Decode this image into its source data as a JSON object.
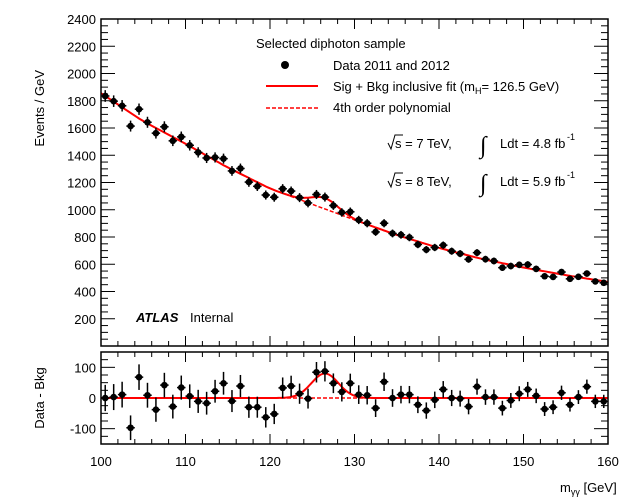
{
  "chart_data": [
    {
      "type": "scatter",
      "panel": "main",
      "ylabel": "Events / GeV",
      "xlim": [
        100,
        160
      ],
      "ylim": [
        0,
        2400
      ],
      "yticks": [
        200,
        400,
        600,
        800,
        1000,
        1200,
        1400,
        1600,
        1800,
        2000,
        2200,
        2400
      ],
      "legend": {
        "title": "Selected diphoton sample",
        "entries": [
          "Data 2011 and 2012",
          "Sig + Bkg inclusive fit (m",
          "= 126.5 GeV)",
          "4th order polynomial"
        ],
        "mh_sub": "H"
      },
      "annotations": {
        "lumi_7": {
          "sqrt_s": "s = 7 TeV,",
          "int": "Ldt = 4.8 fb",
          "exp": "-1"
        },
        "lumi_8": {
          "sqrt_s": "s = 8 TeV,",
          "int": "Ldt = 5.9 fb",
          "exp": "-1"
        },
        "atlas": "ATLAS",
        "internal": "Internal"
      },
      "colors": {
        "data": "#000000",
        "fit": "#ff0000",
        "bkg": "#ff0000"
      },
      "x": [
        100.5,
        101.5,
        102.5,
        103.5,
        104.5,
        105.5,
        106.5,
        107.5,
        108.5,
        109.5,
        110.5,
        111.5,
        112.5,
        113.5,
        114.5,
        115.5,
        116.5,
        117.5,
        118.5,
        119.5,
        120.5,
        121.5,
        122.5,
        123.5,
        124.5,
        125.5,
        126.5,
        127.5,
        128.5,
        129.5,
        130.5,
        131.5,
        132.5,
        133.5,
        134.5,
        135.5,
        136.5,
        137.5,
        138.5,
        139.5,
        140.5,
        141.5,
        142.5,
        143.5,
        144.5,
        145.5,
        146.5,
        147.5,
        148.5,
        149.5,
        150.5,
        151.5,
        152.5,
        153.5,
        154.5,
        155.5,
        156.5,
        157.5,
        158.5,
        159.5
      ],
      "data": [
        1835,
        1797,
        1763,
        1614,
        1738,
        1642,
        1562,
        1609,
        1506,
        1535,
        1473,
        1421,
        1380,
        1384,
        1375,
        1285,
        1303,
        1203,
        1172,
        1108,
        1092,
        1154,
        1137,
        1089,
        1050,
        1112,
        1093,
        1031,
        980,
        985,
        925,
        901,
        837,
        901,
        826,
        816,
        797,
        745,
        707,
        723,
        740,
        696,
        678,
        636,
        685,
        637,
        624,
        575,
        587,
        596,
        598,
        566,
        512,
        507,
        543,
        493,
        508,
        532,
        474,
        464
      ],
      "background": [
        1835,
        1794,
        1752,
        1711,
        1670,
        1633,
        1600,
        1567,
        1534,
        1501,
        1467,
        1432,
        1397,
        1362,
        1327,
        1295,
        1264,
        1233,
        1202,
        1171,
        1144,
        1121,
        1098,
        1075,
        1052,
        1028,
        1006,
        983,
        960,
        937,
        914,
        892,
        870,
        848,
        826,
        805,
        786,
        767,
        748,
        729,
        712,
        696,
        680,
        664,
        648,
        634,
        621,
        608,
        595,
        582,
        570,
        559,
        548,
        537,
        526,
        515,
        505,
        495,
        485,
        475
      ],
      "signal": {
        "mass": 126.5,
        "peak": 80,
        "sigma": 1.6
      }
    },
    {
      "type": "scatter",
      "panel": "residual",
      "ylabel": "Data - Bkg",
      "xlabel": "m",
      "xlabel_sub": "γγ",
      "xlabel_unit": " [GeV]",
      "xlim": [
        100,
        160
      ],
      "ylim": [
        -150,
        150
      ],
      "yticks": [
        -100,
        0,
        100
      ],
      "xticks": [
        100,
        110,
        120,
        130,
        140,
        150,
        160
      ],
      "residuals": [
        0,
        3,
        11,
        -97,
        68,
        9,
        -38,
        42,
        -28,
        34,
        6,
        -11,
        -17,
        22,
        48,
        -10,
        39,
        -30,
        -30,
        -63,
        -52,
        33,
        39,
        14,
        -2,
        84,
        87,
        48,
        20,
        48,
        11,
        9,
        -33,
        53,
        0,
        11,
        11,
        -22,
        -41,
        -6,
        28,
        0,
        -2,
        -28,
        37,
        3,
        3,
        -33,
        -8,
        14,
        28,
        7,
        -36,
        -30,
        17,
        -22,
        3,
        37,
        -11,
        -11
      ]
    }
  ]
}
